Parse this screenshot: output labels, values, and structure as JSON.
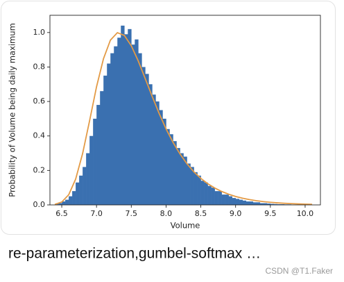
{
  "chart_data": {
    "type": "histogram",
    "xlabel": "Volume",
    "ylabel": "Probability of Volume being daily maximum",
    "color": "#3a70b0",
    "bins": [
      6.4,
      6.45,
      6.5,
      6.55,
      6.6,
      6.65,
      6.7,
      6.75,
      6.8,
      6.85,
      6.9,
      6.95,
      7.0,
      7.05,
      7.1,
      7.15,
      7.2,
      7.25,
      7.3,
      7.35,
      7.4,
      7.45,
      7.5,
      7.55,
      7.6,
      7.65,
      7.7,
      7.75,
      7.8,
      7.85,
      7.9,
      7.95,
      8.0,
      8.05,
      8.1,
      8.15,
      8.2,
      8.25,
      8.3,
      8.35,
      8.4,
      8.45,
      8.5,
      8.55,
      8.6,
      8.65,
      8.7,
      8.75,
      8.8,
      8.85,
      8.9,
      8.95,
      9.0,
      9.05,
      9.1,
      9.15,
      9.2,
      9.25,
      9.3,
      9.35,
      9.4,
      9.45,
      9.5,
      9.55,
      9.6,
      9.65,
      9.7,
      9.75,
      9.8,
      9.85,
      9.9,
      9.95,
      10.0,
      10.05,
      10.1
    ],
    "values": [
      0.005,
      0.01,
      0.02,
      0.03,
      0.05,
      0.08,
      0.13,
      0.17,
      0.22,
      0.3,
      0.4,
      0.5,
      0.58,
      0.66,
      0.75,
      0.82,
      0.88,
      0.92,
      0.97,
      1.04,
      0.99,
      1.02,
      0.93,
      0.96,
      0.88,
      0.8,
      0.76,
      0.7,
      0.64,
      0.6,
      0.55,
      0.5,
      0.44,
      0.41,
      0.37,
      0.33,
      0.3,
      0.28,
      0.24,
      0.22,
      0.19,
      0.17,
      0.14,
      0.13,
      0.11,
      0.1,
      0.08,
      0.08,
      0.06,
      0.06,
      0.05,
      0.04,
      0.035,
      0.03,
      0.025,
      0.02,
      0.02,
      0.015,
      0.015,
      0.01,
      0.01,
      0.008,
      0.006,
      0.005,
      0.004,
      0.004,
      0.003,
      0.003,
      0.002,
      0.002,
      0.002,
      0.001,
      0.001,
      0.001
    ],
    "overlay": {
      "type": "line",
      "color": "#e39a45",
      "x": [
        6.4,
        6.5,
        6.6,
        6.7,
        6.8,
        6.9,
        7.0,
        7.1,
        7.2,
        7.3,
        7.4,
        7.5,
        7.6,
        7.7,
        7.8,
        7.9,
        8.0,
        8.1,
        8.2,
        8.3,
        8.4,
        8.5,
        8.6,
        8.7,
        8.8,
        8.9,
        9.0,
        9.1,
        9.2,
        9.3,
        9.4,
        9.5,
        9.6,
        9.7,
        9.8,
        9.9,
        10.0,
        10.1
      ],
      "values": [
        0.0032,
        0.0168,
        0.059,
        0.15,
        0.298,
        0.488,
        0.685,
        0.848,
        0.956,
        0.999,
        0.983,
        0.923,
        0.835,
        0.733,
        0.63,
        0.531,
        0.441,
        0.363,
        0.296,
        0.239,
        0.192,
        0.154,
        0.123,
        0.098,
        0.078,
        0.062,
        0.049,
        0.0387,
        0.0306,
        0.0242,
        0.0191,
        0.0151,
        0.0119,
        0.0094,
        0.0074,
        0.0058,
        0.0046,
        0.0036
      ]
    },
    "xlim": [
      6.33,
      10.22
    ],
    "ylim": [
      0,
      1.1
    ],
    "xticks": [
      6.5,
      {
        "value": 7.0,
        "label": "7.0"
      },
      7.5,
      {
        "value": 8.0,
        "label": "8.0"
      },
      8.5,
      {
        "value": 9.0,
        "label": "9.0"
      },
      9.5,
      {
        "value": 10.0,
        "label": "10.0"
      }
    ],
    "yticks": [
      {
        "value": 0.0,
        "label": "0.0"
      },
      0.2,
      0.4,
      0.6,
      0.8,
      {
        "value": 1.0,
        "label": "1.0"
      }
    ],
    "grid": false
  },
  "caption": "re-parameterization,gumbel-softmax …",
  "watermark": "CSDN @T1.Faker"
}
